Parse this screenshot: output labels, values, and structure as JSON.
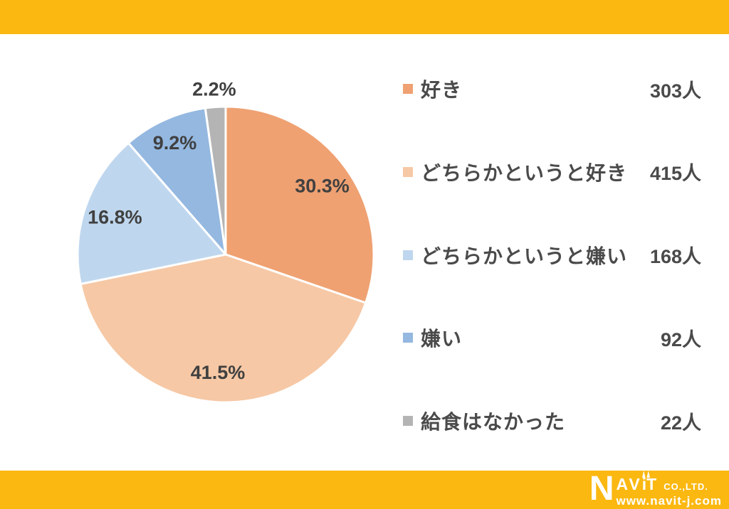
{
  "banner": {
    "color": "#FBB811"
  },
  "chart_data": {
    "type": "pie",
    "title": "",
    "labels": [
      "好き",
      "どちらかというと好き",
      "どちらかというと嫌い",
      "嫌い",
      "給食はなかった"
    ],
    "values_pct": [
      30.3,
      41.5,
      16.8,
      9.2,
      2.2
    ],
    "counts": [
      303,
      415,
      168,
      92,
      22
    ],
    "count_unit": "人",
    "colors": [
      "#EFA172",
      "#F6C8A5",
      "#BFD7EE",
      "#94B8E0",
      "#B4B4B4"
    ],
    "start_angle_deg": 0,
    "direction": "clockwise",
    "slice_stroke_color": "#FFFFFF",
    "slice_stroke_width": 3,
    "label_color": "#404040",
    "label_radius_factors": [
      0.8,
      0.8,
      0.79,
      0.83,
      1.12
    ],
    "legend_position": "right"
  },
  "legend": {
    "items": [
      {
        "label": "好き",
        "count_text": "303人",
        "color": "#EFA172"
      },
      {
        "label": "どちらかというと好き",
        "count_text": "415人",
        "color": "#F6C8A5"
      },
      {
        "label": "どちらかというと嫌い",
        "count_text": "168人",
        "color": "#BFD7EE"
      },
      {
        "label": "嫌い",
        "count_text": "92人",
        "color": "#94B8E0"
      },
      {
        "label": "給食はなかった",
        "count_text": "22人",
        "color": "#B4B4B4"
      }
    ]
  },
  "footer": {
    "logo": {
      "brand_n": "N",
      "brand_av": "AV",
      "brand_i": "i",
      "brand_t": "T",
      "suffix": "CO.,LTD.",
      "website": "www.navit-j.com"
    }
  }
}
